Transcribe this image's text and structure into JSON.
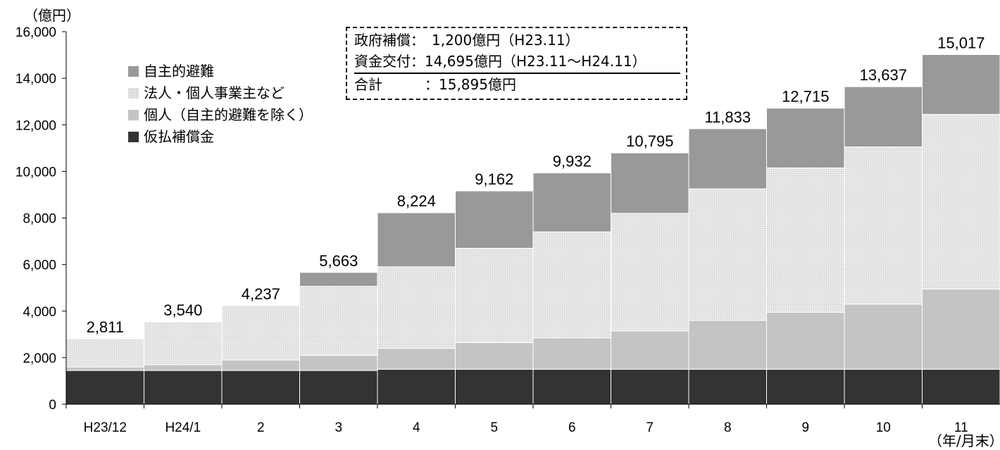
{
  "y_unit_label": "（億円）",
  "x_unit_label": "（年/月末）",
  "legend": [
    {
      "label": "自主的避難",
      "key": "auto"
    },
    {
      "label": "法人・個人事業主など",
      "key": "corp"
    },
    {
      "label": "個人（自主的避難を除く）",
      "key": "ind"
    },
    {
      "label": "仮払補償金",
      "key": "prov"
    }
  ],
  "info_box": {
    "line1": "政府補償：　1,200億円（H23.11）",
    "line2": "資金交付：14,695億円（H23.11～H24.11）",
    "total": "合計　　　：15,895億円"
  },
  "colors": {
    "provisional": "#333333",
    "individual": "#c4c4c4",
    "corporate": "#ededed",
    "voluntary": "#999999",
    "axis": "#000000"
  },
  "chart_data": {
    "type": "bar",
    "stacked": true,
    "categories": [
      "H23/12",
      "H24/1",
      "2",
      "3",
      "4",
      "5",
      "6",
      "7",
      "8",
      "9",
      "10",
      "11"
    ],
    "series": [
      {
        "name": "仮払補償金",
        "values": [
          1450,
          1450,
          1450,
          1450,
          1500,
          1500,
          1500,
          1500,
          1500,
          1500,
          1500,
          1500
        ]
      },
      {
        "name": "個人（自主的避難を除く）",
        "values": [
          150,
          250,
          450,
          650,
          900,
          1150,
          1350,
          1650,
          2100,
          2450,
          2800,
          3450
        ]
      },
      {
        "name": "法人・個人事業主など",
        "values": [
          1211,
          1840,
          2337,
          2963,
          3500,
          4050,
          4550,
          5050,
          5650,
          6200,
          6750,
          7500
        ]
      },
      {
        "name": "自主的避難",
        "values": [
          0,
          0,
          0,
          600,
          2324,
          2462,
          2532,
          2595,
          2583,
          2565,
          2587,
          2567
        ]
      }
    ],
    "totals": [
      2811,
      3540,
      4237,
      5663,
      8224,
      9162,
      9932,
      10795,
      11833,
      12715,
      13637,
      15017
    ],
    "total_labels": [
      "2,811",
      "3,540",
      "4,237",
      "5,663",
      "8,224",
      "9,162",
      "9,932",
      "10,795",
      "11,833",
      "12,715",
      "13,637",
      "15,017"
    ],
    "ylim": [
      0,
      16000
    ],
    "yticks": [
      0,
      2000,
      4000,
      6000,
      8000,
      10000,
      12000,
      14000,
      16000
    ],
    "ytick_labels": [
      "0",
      "2,000",
      "4,000",
      "6,000",
      "8,000",
      "10,000",
      "12,000",
      "14,000",
      "16,000"
    ],
    "grid": false,
    "legend_position": "top-left"
  }
}
